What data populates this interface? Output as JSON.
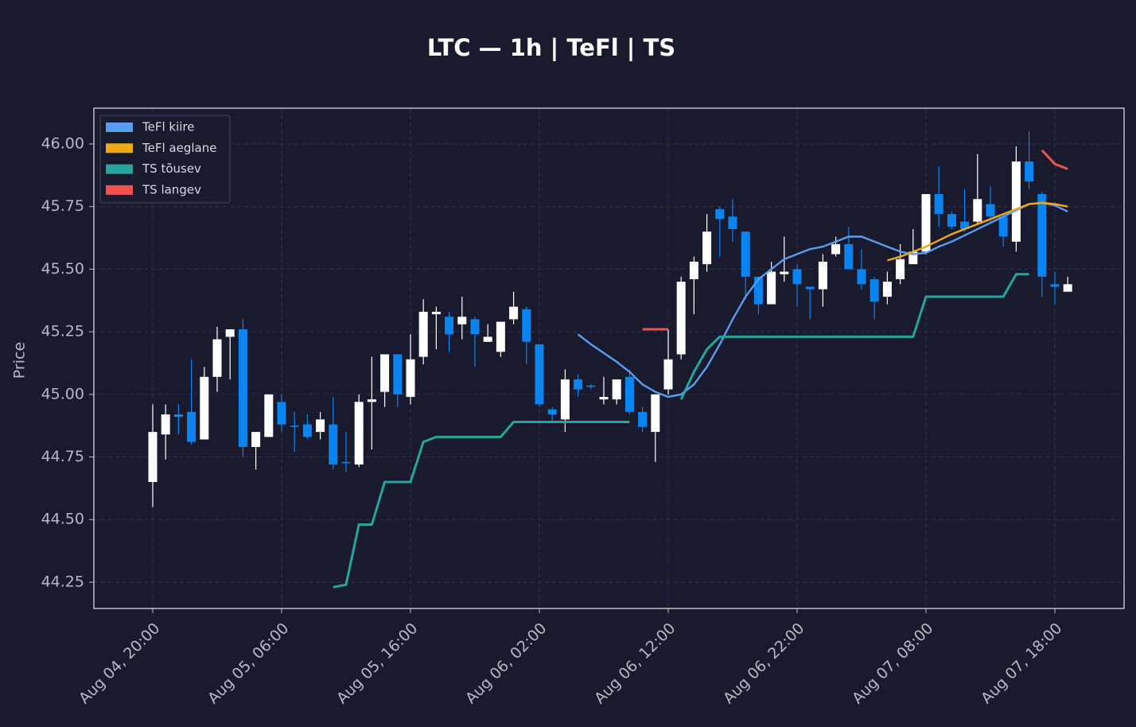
{
  "chart_data": {
    "type": "candlestick",
    "title": "LTC — 1h  |  TeFl  |  TS",
    "y_label": "Price",
    "categories": [
      "Aug 04, 20:00",
      null,
      null,
      null,
      null,
      null,
      null,
      null,
      null,
      null,
      "Aug 05, 06:00",
      null,
      null,
      null,
      null,
      null,
      null,
      null,
      null,
      null,
      "Aug 05, 16:00",
      null,
      null,
      null,
      null,
      null,
      null,
      null,
      null,
      null,
      "Aug 06, 02:00",
      null,
      null,
      null,
      null,
      null,
      null,
      null,
      null,
      null,
      "Aug 06, 12:00",
      null,
      null,
      null,
      null,
      null,
      null,
      null,
      null,
      null,
      "Aug 06, 22:00",
      null,
      null,
      null,
      null,
      null,
      null,
      null,
      null,
      null,
      "Aug 07, 08:00",
      null,
      null,
      null,
      null,
      null,
      null,
      null,
      null,
      null,
      "Aug 07, 18:00",
      null
    ],
    "open": [
      44.65,
      44.84,
      44.92,
      44.93,
      44.82,
      45.07,
      45.23,
      45.26,
      44.79,
      44.83,
      44.97,
      44.875,
      44.88,
      44.85,
      44.88,
      44.73,
      44.72,
      44.97,
      45.01,
      45.16,
      44.99,
      45.15,
      45.32,
      45.31,
      45.28,
      45.3,
      45.21,
      45.17,
      45.3,
      45.34,
      45.2,
      44.94,
      44.9,
      45.06,
      45.035,
      44.98,
      44.98,
      45.07,
      44.93,
      44.85,
      45.02,
      45.16,
      45.46,
      45.52,
      45.74,
      45.71,
      45.65,
      45.47,
      45.36,
      45.48,
      45.5,
      45.43,
      45.42,
      45.56,
      45.6,
      45.5,
      45.46,
      45.39,
      45.46,
      45.52,
      45.57,
      45.8,
      45.72,
      45.69,
      45.69,
      45.76,
      45.71,
      45.61,
      45.93,
      45.8,
      45.44,
      45.41
    ],
    "high": [
      44.96,
      44.96,
      44.96,
      45.14,
      45.11,
      45.27,
      45.26,
      45.3,
      44.85,
      45.0,
      45.0,
      44.93,
      44.92,
      44.93,
      44.99,
      44.85,
      45.0,
      45.15,
      45.16,
      45.16,
      45.24,
      45.38,
      45.35,
      45.33,
      45.39,
      45.31,
      45.28,
      45.29,
      45.41,
      45.35,
      45.2,
      44.95,
      45.1,
      45.08,
      45.04,
      45.07,
      45.06,
      45.1,
      44.95,
      45.0,
      45.26,
      45.47,
      45.55,
      45.72,
      45.75,
      45.78,
      45.65,
      45.47,
      45.53,
      45.63,
      45.52,
      45.43,
      45.56,
      45.63,
      45.67,
      45.58,
      45.47,
      45.49,
      45.6,
      45.66,
      45.8,
      45.91,
      45.73,
      45.82,
      45.96,
      45.83,
      45.72,
      45.99,
      46.05,
      45.81,
      45.49,
      45.47
    ],
    "low": [
      44.55,
      44.74,
      44.84,
      44.8,
      44.82,
      45.01,
      45.06,
      44.75,
      44.7,
      44.83,
      44.85,
      44.77,
      44.82,
      44.82,
      44.7,
      44.69,
      44.71,
      44.78,
      44.95,
      44.95,
      44.96,
      45.12,
      45.18,
      45.17,
      45.22,
      45.11,
      45.21,
      45.15,
      45.28,
      45.12,
      44.95,
      44.89,
      44.85,
      44.99,
      45.02,
      44.96,
      44.96,
      44.92,
      44.85,
      44.73,
      45.0,
      45.14,
      45.32,
      45.49,
      45.55,
      45.61,
      45.38,
      45.32,
      45.36,
      45.45,
      45.35,
      45.3,
      45.35,
      45.55,
      45.5,
      45.42,
      45.3,
      45.36,
      45.44,
      45.52,
      45.56,
      45.67,
      45.66,
      45.65,
      45.68,
      45.69,
      45.59,
      45.57,
      45.82,
      45.39,
      45.36,
      45.41
    ],
    "close": [
      44.85,
      44.92,
      44.91,
      44.81,
      45.07,
      45.22,
      45.26,
      44.79,
      44.85,
      45.0,
      44.88,
      44.87,
      44.83,
      44.9,
      44.72,
      44.725,
      44.97,
      44.98,
      45.16,
      45.0,
      45.14,
      45.33,
      45.33,
      45.24,
      45.31,
      45.24,
      45.23,
      45.29,
      45.35,
      45.21,
      44.96,
      44.92,
      45.06,
      45.02,
      45.03,
      44.99,
      45.06,
      44.93,
      44.87,
      45.0,
      45.14,
      45.45,
      45.53,
      45.65,
      45.7,
      45.66,
      45.47,
      45.36,
      45.49,
      45.49,
      45.44,
      45.42,
      45.53,
      45.6,
      45.5,
      45.44,
      45.37,
      45.45,
      45.54,
      45.57,
      45.8,
      45.72,
      45.67,
      45.66,
      45.78,
      45.71,
      45.63,
      45.93,
      45.85,
      45.47,
      45.43,
      45.44
    ],
    "up_color": "#ffffff",
    "down_color": "#0a84f0",
    "series": [
      {
        "name": "TeFl kiire",
        "color": "#5a9cf0",
        "values": [
          null,
          null,
          null,
          null,
          null,
          null,
          null,
          null,
          null,
          null,
          null,
          null,
          null,
          null,
          null,
          null,
          null,
          null,
          null,
          null,
          null,
          null,
          null,
          null,
          null,
          null,
          null,
          null,
          null,
          null,
          null,
          null,
          null,
          45.24,
          45.2,
          45.165,
          45.13,
          45.09,
          45.04,
          45.01,
          44.99,
          45.0,
          45.04,
          45.11,
          45.2,
          45.3,
          45.39,
          45.46,
          45.5,
          45.54,
          45.56,
          45.58,
          45.59,
          45.61,
          45.63,
          45.63,
          45.61,
          45.59,
          45.57,
          45.56,
          45.565,
          45.59,
          45.61,
          45.635,
          45.66,
          45.685,
          45.71,
          45.735,
          45.76,
          45.765,
          45.755,
          45.73
        ]
      },
      {
        "name": "TeFl aeglane",
        "color": "#f0a818",
        "values": [
          null,
          null,
          null,
          null,
          null,
          null,
          null,
          null,
          null,
          null,
          null,
          null,
          null,
          null,
          null,
          null,
          null,
          null,
          null,
          null,
          null,
          null,
          null,
          null,
          null,
          null,
          null,
          null,
          null,
          null,
          null,
          null,
          null,
          null,
          null,
          null,
          null,
          null,
          null,
          null,
          null,
          null,
          null,
          null,
          null,
          null,
          null,
          null,
          null,
          null,
          null,
          null,
          null,
          null,
          null,
          null,
          null,
          45.535,
          45.55,
          45.57,
          45.59,
          45.615,
          45.64,
          45.66,
          45.68,
          45.7,
          45.72,
          45.74,
          45.76,
          45.765,
          45.76,
          45.75
        ]
      },
      {
        "name": "TS tõusev",
        "color": "#26a69a",
        "values": [
          null,
          null,
          null,
          null,
          null,
          null,
          null,
          null,
          null,
          null,
          null,
          null,
          null,
          null,
          44.23,
          44.24,
          44.48,
          44.48,
          44.65,
          44.65,
          44.65,
          44.81,
          44.83,
          44.83,
          44.83,
          44.83,
          44.83,
          44.83,
          44.89,
          44.89,
          44.89,
          44.89,
          44.89,
          44.89,
          44.89,
          44.89,
          44.89,
          44.89,
          null,
          null,
          null,
          44.98,
          45.09,
          45.18,
          45.23,
          45.23,
          45.23,
          45.23,
          45.23,
          45.23,
          45.23,
          45.23,
          45.23,
          45.23,
          45.23,
          45.23,
          45.23,
          45.23,
          45.23,
          45.23,
          45.39,
          45.39,
          45.39,
          45.39,
          45.39,
          45.39,
          45.39,
          45.48,
          45.48,
          null,
          null,
          null
        ]
      },
      {
        "name": "TS langev",
        "color": "#ef5350",
        "values": [
          null,
          null,
          null,
          null,
          null,
          null,
          null,
          null,
          null,
          null,
          null,
          null,
          null,
          null,
          null,
          null,
          null,
          null,
          null,
          null,
          null,
          null,
          null,
          null,
          null,
          null,
          null,
          null,
          null,
          null,
          null,
          null,
          null,
          null,
          null,
          null,
          null,
          null,
          45.26,
          45.26,
          45.26,
          null,
          null,
          null,
          null,
          null,
          null,
          null,
          null,
          null,
          null,
          null,
          null,
          null,
          null,
          null,
          null,
          null,
          null,
          null,
          null,
          null,
          null,
          null,
          null,
          null,
          null,
          null,
          null,
          45.975,
          45.92,
          45.9
        ]
      }
    ],
    "legend": "upper left",
    "ylim": [
      44.145,
      46.143
    ],
    "yticks": [
      44.25,
      {
        "value": 44.5,
        "label": "44.50"
      },
      44.75,
      {
        "value": 45,
        "label": "45.00"
      },
      45.25,
      {
        "value": 45.5,
        "label": "45.50"
      },
      45.75,
      {
        "value": 46,
        "label": "46.00"
      }
    ],
    "grid": true
  }
}
